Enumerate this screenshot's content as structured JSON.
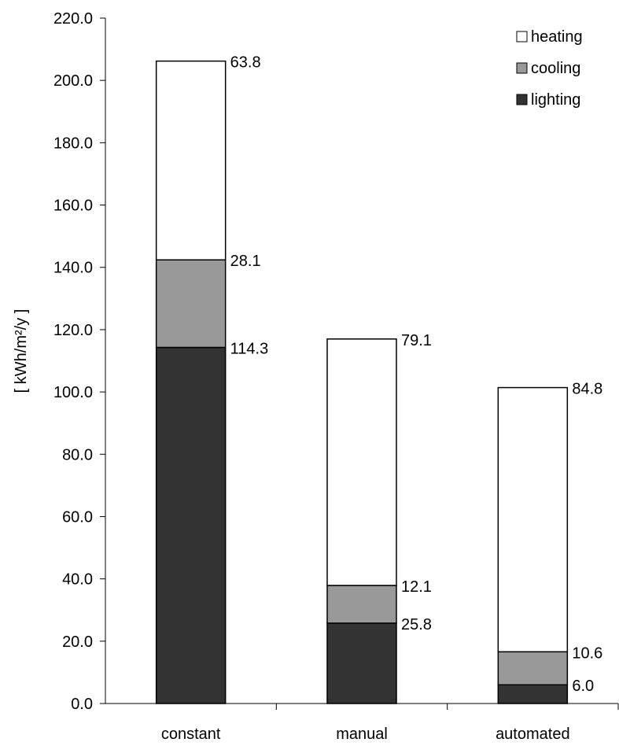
{
  "chart_data": {
    "type": "bar",
    "stacked": true,
    "title": "",
    "xlabel": "",
    "ylabel": "[ kWh/m²/y ]",
    "categories": [
      "constant",
      "manual",
      "automated"
    ],
    "ylim": [
      0,
      220
    ],
    "y_ticks": [
      {
        "value": 0,
        "label": "0.0"
      },
      {
        "value": 20,
        "label": "20.0"
      },
      {
        "value": 40,
        "label": "40.0"
      },
      {
        "value": 60,
        "label": "60.0"
      },
      {
        "value": 80,
        "label": "80.0"
      },
      {
        "value": 100,
        "label": "100.0"
      },
      {
        "value": 120,
        "label": "120.0"
      },
      {
        "value": 140,
        "label": "140.0"
      },
      {
        "value": 160,
        "label": "160.0"
      },
      {
        "value": 180,
        "label": "180.0"
      },
      {
        "value": 200,
        "label": "200.0"
      },
      {
        "value": 220,
        "label": "220.0"
      }
    ],
    "series": [
      {
        "name": "lighting",
        "color": "#333333",
        "values": [
          114.3,
          25.8,
          6.0
        ],
        "labels": [
          "114.3",
          "25.8",
          "6.0"
        ]
      },
      {
        "name": "cooling",
        "color": "#999999",
        "values": [
          28.1,
          12.1,
          10.6
        ],
        "labels": [
          "28.1",
          "12.1",
          "10.6"
        ]
      },
      {
        "name": "heating",
        "color": "#ffffff",
        "values": [
          63.8,
          79.1,
          84.8
        ],
        "labels": [
          "63.8",
          "79.1",
          "84.8"
        ]
      }
    ],
    "legend": {
      "placement": "top-right",
      "order": [
        "heating",
        "cooling",
        "lighting"
      ]
    },
    "grid": false
  }
}
